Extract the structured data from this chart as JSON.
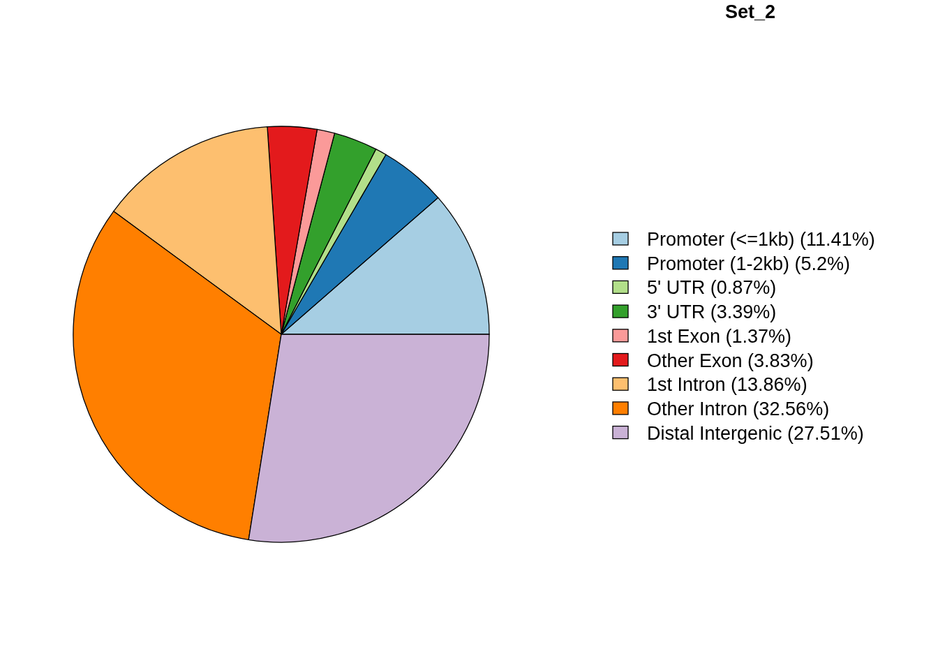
{
  "chart_data": {
    "type": "pie",
    "title": "Set_2",
    "categories": [
      "Promoter (<=1kb)",
      "Promoter (1-2kb)",
      "5' UTR",
      "3' UTR",
      "1st Exon",
      "Other Exon",
      "1st Intron",
      "Other Intron",
      "Distal Intergenic"
    ],
    "values": [
      11.41,
      5.2,
      0.87,
      3.39,
      1.37,
      3.83,
      13.86,
      32.56,
      27.51
    ],
    "value_labels": [
      "(11.41%)",
      "(5.2%)",
      "(0.87%)",
      "(3.39%)",
      "(1.37%)",
      "(3.83%)",
      "(13.86%)",
      "(32.56%)",
      "(27.51%)"
    ],
    "colors": [
      "#a6cee3",
      "#1f78b4",
      "#b2df8a",
      "#33a02c",
      "#fb9a99",
      "#e31a1c",
      "#fdbf6f",
      "#ff7f00",
      "#cab2d6"
    ],
    "legend": "right"
  }
}
